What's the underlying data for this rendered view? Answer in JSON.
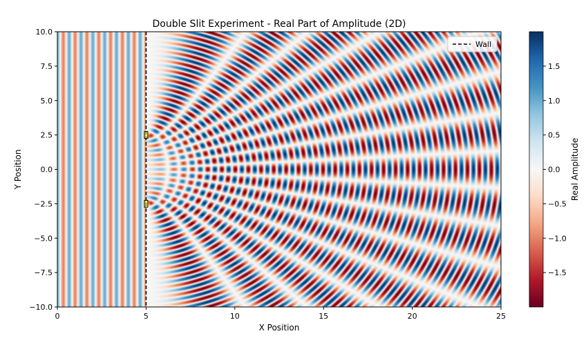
{
  "chart_data": {
    "type": "heatmap",
    "title": "Double Slit Experiment - Real Part of Amplitude (2D)",
    "xlabel": "X Position",
    "ylabel": "Y Position",
    "xlim": [
      0,
      25
    ],
    "ylim": [
      -10,
      10
    ],
    "x_ticks": [
      0,
      5,
      10,
      15,
      20,
      25
    ],
    "x_tick_labels": [
      "0",
      "5",
      "10",
      "15",
      "20",
      "25"
    ],
    "y_ticks": [
      10.0,
      7.5,
      5.0,
      2.5,
      0.0,
      -2.5,
      -5.0,
      -7.5,
      -10.0
    ],
    "y_tick_labels": [
      "10.0",
      "7.5",
      "5.0",
      "2.5",
      "0.0",
      "−2.5",
      "−5.0",
      "−7.5",
      "−10.0"
    ],
    "wall": {
      "x": 5,
      "label": "Wall",
      "style": "dashed",
      "color": "#000000"
    },
    "slits": [
      {
        "x": 5,
        "y": 2.5,
        "color": "#ffff00"
      },
      {
        "x": 5,
        "y": -2.5,
        "color": "#ffff00"
      }
    ],
    "incident_wave": {
      "region": [
        0,
        5
      ],
      "crests_per_unit": 1.5
    },
    "colorbar": {
      "label": "Real Amplitude",
      "range": [
        -2,
        2
      ],
      "ticks": [
        1.5,
        1.0,
        0.5,
        0.0,
        -0.5,
        -1.0,
        -1.5
      ],
      "tick_labels": [
        "1.5",
        "1.0",
        "0.5",
        "0.0",
        "−0.5",
        "−1.0",
        "−1.5"
      ],
      "colormap": "RdBu",
      "colors": [
        "#67001f",
        "#b2182b",
        "#d6604d",
        "#f4a582",
        "#fddbc7",
        "#f7f7f7",
        "#d1e5f0",
        "#92c5de",
        "#4393c3",
        "#2166ac",
        "#053061"
      ]
    },
    "legend": {
      "placement": "top-right",
      "entries": [
        "Wall"
      ]
    },
    "grid": false
  }
}
